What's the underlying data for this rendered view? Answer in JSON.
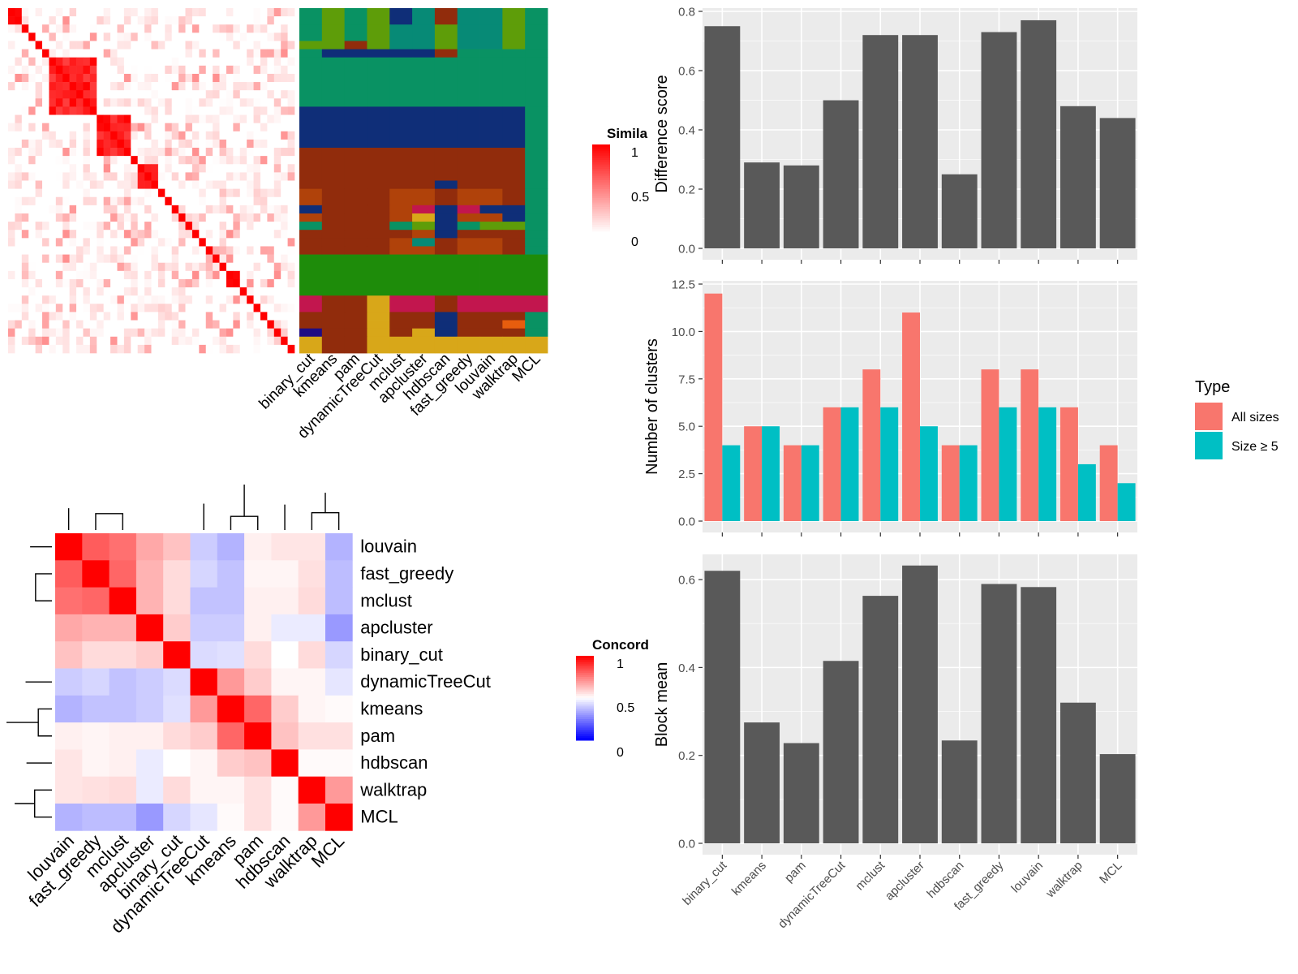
{
  "methods": [
    "binary_cut",
    "kmeans",
    "pam",
    "dynamicTreeCut",
    "mclust",
    "apcluster",
    "hdbscan",
    "fast_greedy",
    "louvain",
    "walktrap",
    "MCL"
  ],
  "heatmap_similarity": {
    "legend_title": "Simila",
    "legend_ticks": [
      "1",
      "0.5",
      "0"
    ],
    "colors": [
      "#FFFFFF",
      "#FF0000"
    ],
    "n_items": 42,
    "block_sizes": [
      2,
      1,
      1,
      1,
      1,
      7,
      5,
      1,
      3,
      1,
      1,
      1,
      1,
      1,
      1,
      1,
      1,
      1,
      1,
      2,
      1,
      1,
      1,
      1,
      1,
      1,
      1,
      1
    ],
    "column_labels": [
      "binary_cut",
      "kmeans",
      "pam",
      "dynamicTreeCut",
      "mclust",
      "apcluster",
      "hdbscan",
      "fast_greedy",
      "louvain",
      "walktrap",
      "MCL"
    ],
    "cluster_palette": [
      "#099263",
      "#5E9D09",
      "#0F2E78",
      "#912C0C",
      "#B0420A",
      "#1E8C0A",
      "#C2164E",
      "#D8A719",
      "#E75D0E",
      "#1F0C84",
      "#078A76"
    ]
  },
  "heatmap_concordance": {
    "legend_title": "Concord",
    "legend_ticks": [
      "1",
      "0.5",
      "0"
    ],
    "colors": [
      "#0000FF",
      "#FFFFFF",
      "#FF0000"
    ],
    "order": [
      "louvain",
      "fast_greedy",
      "mclust",
      "apcluster",
      "binary_cut",
      "dynamicTreeCut",
      "kmeans",
      "pam",
      "hdbscan",
      "walktrap",
      "MCL"
    ],
    "matrix": [
      [
        1.0,
        0.82,
        0.78,
        0.67,
        0.62,
        0.4,
        0.35,
        0.53,
        0.55,
        0.55,
        0.35
      ],
      [
        0.82,
        1.0,
        0.8,
        0.65,
        0.57,
        0.42,
        0.38,
        0.52,
        0.52,
        0.56,
        0.37
      ],
      [
        0.78,
        0.8,
        1.0,
        0.65,
        0.57,
        0.38,
        0.38,
        0.53,
        0.53,
        0.57,
        0.37
      ],
      [
        0.67,
        0.65,
        0.65,
        1.0,
        0.6,
        0.4,
        0.4,
        0.53,
        0.46,
        0.46,
        0.3
      ],
      [
        0.62,
        0.57,
        0.57,
        0.6,
        1.0,
        0.43,
        0.44,
        0.57,
        0.5,
        0.57,
        0.42
      ],
      [
        0.4,
        0.42,
        0.38,
        0.4,
        0.43,
        1.0,
        0.7,
        0.6,
        0.52,
        0.52,
        0.45
      ],
      [
        0.35,
        0.38,
        0.38,
        0.4,
        0.44,
        0.7,
        1.0,
        0.8,
        0.6,
        0.52,
        0.51
      ],
      [
        0.53,
        0.52,
        0.53,
        0.53,
        0.57,
        0.6,
        0.8,
        1.0,
        0.62,
        0.56,
        0.56
      ],
      [
        0.55,
        0.52,
        0.53,
        0.46,
        0.5,
        0.52,
        0.6,
        0.62,
        1.0,
        0.51,
        0.51
      ],
      [
        0.55,
        0.56,
        0.57,
        0.46,
        0.57,
        0.52,
        0.52,
        0.56,
        0.51,
        1.0,
        0.7
      ],
      [
        0.35,
        0.37,
        0.37,
        0.3,
        0.42,
        0.45,
        0.51,
        0.56,
        0.51,
        0.7,
        1.0
      ]
    ]
  },
  "chart_data": [
    {
      "type": "bar",
      "title": "",
      "xlabel": "",
      "ylabel": "Difference score",
      "categories": [
        "binary_cut",
        "kmeans",
        "pam",
        "dynamicTreeCut",
        "mclust",
        "apcluster",
        "hdbscan",
        "fast_greedy",
        "louvain",
        "walktrap",
        "MCL"
      ],
      "values": [
        0.75,
        0.29,
        0.28,
        0.5,
        0.72,
        0.72,
        0.25,
        0.73,
        0.77,
        0.48,
        0.44
      ],
      "ylim": [
        0,
        0.8
      ],
      "yticks": [
        "0.0",
        "0.2",
        "0.4",
        "0.6",
        "0.8"
      ],
      "bar_color": "#595959",
      "panel_background": "#EBEBEB",
      "grid": true
    },
    {
      "type": "bar",
      "title": "",
      "xlabel": "",
      "ylabel": "Number of clusters",
      "categories": [
        "binary_cut",
        "kmeans",
        "pam",
        "dynamicTreeCut",
        "mclust",
        "apcluster",
        "hdbscan",
        "fast_greedy",
        "louvain",
        "walktrap",
        "MCL"
      ],
      "series": [
        {
          "name": "All sizes",
          "color": "#F8766D",
          "values": [
            12,
            5,
            4,
            6,
            8,
            11,
            4,
            8,
            8,
            6,
            4
          ]
        },
        {
          "name": "Size ≥ 5",
          "color": "#00BFC4",
          "values": [
            4,
            5,
            4,
            6,
            6,
            5,
            4,
            6,
            6,
            3,
            2
          ]
        }
      ],
      "ylim": [
        0,
        12.5
      ],
      "yticks": [
        "0.0",
        "2.5",
        "5.0",
        "7.5",
        "10.0",
        "12.5"
      ],
      "legend": {
        "title": "Type",
        "position": "right"
      },
      "panel_background": "#EBEBEB",
      "grid": true
    },
    {
      "type": "bar",
      "title": "",
      "xlabel": "",
      "ylabel": "Block mean",
      "categories": [
        "binary_cut",
        "kmeans",
        "pam",
        "dynamicTreeCut",
        "mclust",
        "apcluster",
        "hdbscan",
        "fast_greedy",
        "louvain",
        "walktrap",
        "MCL"
      ],
      "values": [
        0.62,
        0.275,
        0.228,
        0.415,
        0.563,
        0.632,
        0.234,
        0.59,
        0.583,
        0.32,
        0.203
      ],
      "ylim": [
        0,
        0.65
      ],
      "yticks": [
        "0.0",
        "0.2",
        "0.4",
        "0.6"
      ],
      "bar_color": "#595959",
      "panel_background": "#EBEBEB",
      "grid": true
    }
  ]
}
